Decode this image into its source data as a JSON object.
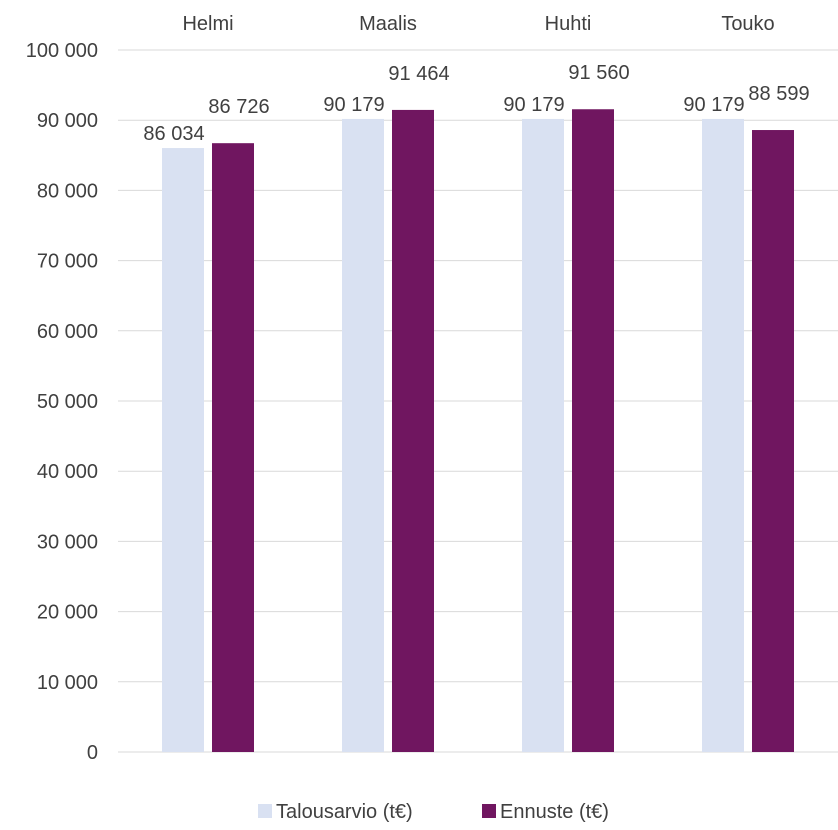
{
  "chart_data": {
    "type": "bar",
    "title": "",
    "xlabel": "",
    "ylabel": "",
    "categories": [
      "Helmi",
      "Maalis",
      "Huhti",
      "Touko"
    ],
    "category_axis_position": "top",
    "series": [
      {
        "name": "Talousarvio (t€)",
        "color": "#d9e1f2",
        "values": [
          86034,
          90179,
          90179,
          90179
        ],
        "labels": [
          "86 034",
          "90 179",
          "90 179",
          "90 179"
        ]
      },
      {
        "name": "Ennuste (t€)",
        "color": "#701660",
        "values": [
          86726,
          91464,
          91560,
          88599
        ],
        "labels": [
          "86 726",
          "91 464",
          "91 560",
          "88 599"
        ]
      }
    ],
    "ylim": [
      0,
      100000
    ],
    "yticks": [
      0,
      10000,
      20000,
      30000,
      40000,
      50000,
      60000,
      70000,
      80000,
      90000,
      100000
    ],
    "ytick_labels": [
      "0",
      "10 000",
      "20 000",
      "30 000",
      "40 000",
      "50 000",
      "60 000",
      "70 000",
      "80 000",
      "90 000",
      "100 000"
    ],
    "grid": true,
    "legend": "bottom"
  }
}
